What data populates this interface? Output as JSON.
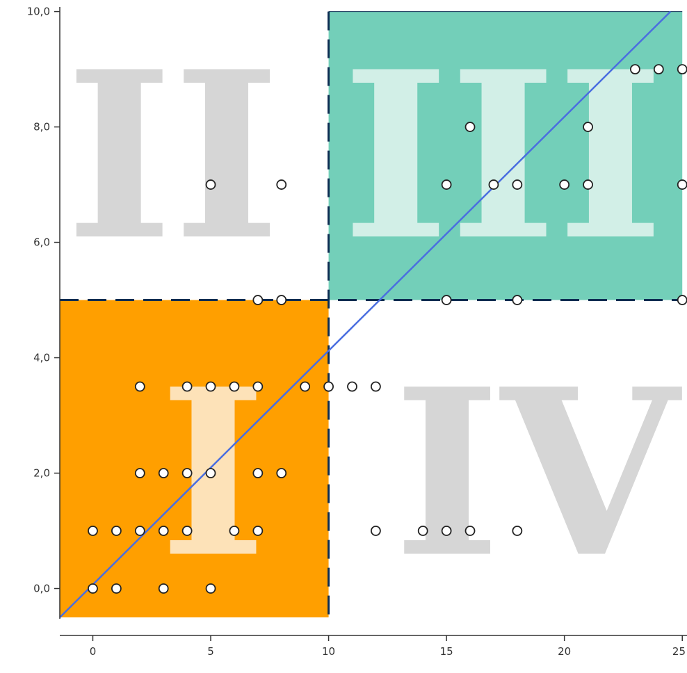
{
  "chart_data": {
    "type": "scatter",
    "title": "",
    "xlabel": "",
    "ylabel": "",
    "xlim": [
      -1.4,
      25.2
    ],
    "ylim": [
      -0.5,
      10.2
    ],
    "xticks": [
      0,
      5,
      10,
      15,
      20,
      25
    ],
    "yticks": [
      0,
      2,
      4,
      6,
      8,
      10
    ],
    "xtick_labels": [
      "0",
      "5",
      "10",
      "15",
      "20",
      "25"
    ],
    "ytick_labels": [
      "0,0",
      "2,0",
      "4,0",
      "6,0",
      "8,0",
      "10,0"
    ],
    "grid": false,
    "threshold_x": 10,
    "threshold_y": 5,
    "quadrants": [
      {
        "label": "I",
        "x_range": [
          -1.4,
          10
        ],
        "y_range": [
          -0.5,
          5
        ],
        "fill": "#ff9f00",
        "label_color": "#fde2b8",
        "label_x": 5.1,
        "label_y": 2.0
      },
      {
        "label": "II",
        "x_range": [
          -1.4,
          10
        ],
        "y_range": [
          5,
          10.2
        ],
        "fill": "",
        "label_color": "#d6d6d6",
        "label_x": 3.4,
        "label_y": 7.5
      },
      {
        "label": "III",
        "x_range": [
          10,
          25
        ],
        "y_range": [
          5,
          10
        ],
        "fill": "#73cfb9",
        "label_color": "#d2efe7",
        "label_x": 17.4,
        "label_y": 7.5
      },
      {
        "label": "IV",
        "x_range": [
          10,
          25.2
        ],
        "y_range": [
          -0.5,
          5
        ],
        "fill": "",
        "label_color": "#d6d6d6",
        "label_x": 18.8,
        "label_y": 2.0
      }
    ],
    "trend_line": {
      "x": [
        -1.4,
        24.5
      ],
      "y": [
        -0.5,
        10.0
      ],
      "color": "#4a6ee0"
    },
    "series": [
      {
        "marker_color": "#ffffff",
        "marker_edge": "#222222",
        "points": [
          [
            0,
            0
          ],
          [
            1,
            0
          ],
          [
            3,
            0
          ],
          [
            5,
            0
          ],
          [
            0,
            1
          ],
          [
            1,
            1
          ],
          [
            2,
            1
          ],
          [
            3,
            1
          ],
          [
            4,
            1
          ],
          [
            6,
            1
          ],
          [
            7,
            1
          ],
          [
            2,
            2
          ],
          [
            3,
            2
          ],
          [
            4,
            2
          ],
          [
            5,
            2
          ],
          [
            7,
            2
          ],
          [
            8,
            2
          ],
          [
            2,
            3.5
          ],
          [
            4,
            3.5
          ],
          [
            5,
            3.5
          ],
          [
            6,
            3.5
          ],
          [
            7,
            3.5
          ],
          [
            9,
            3.5
          ],
          [
            10,
            3.5
          ],
          [
            11,
            3.5
          ],
          [
            12,
            3.5
          ],
          [
            7,
            5
          ],
          [
            8,
            5
          ],
          [
            15,
            5
          ],
          [
            18,
            5
          ],
          [
            25,
            5
          ],
          [
            5,
            7
          ],
          [
            8,
            7
          ],
          [
            15,
            7
          ],
          [
            17,
            7
          ],
          [
            18,
            7
          ],
          [
            20,
            7
          ],
          [
            21,
            7
          ],
          [
            25,
            7
          ],
          [
            16,
            8
          ],
          [
            21,
            8
          ],
          [
            23,
            9
          ],
          [
            24,
            9
          ],
          [
            25,
            9
          ],
          [
            12,
            1
          ],
          [
            14,
            1
          ],
          [
            15,
            1
          ],
          [
            16,
            1
          ],
          [
            18,
            1
          ]
        ]
      }
    ]
  }
}
